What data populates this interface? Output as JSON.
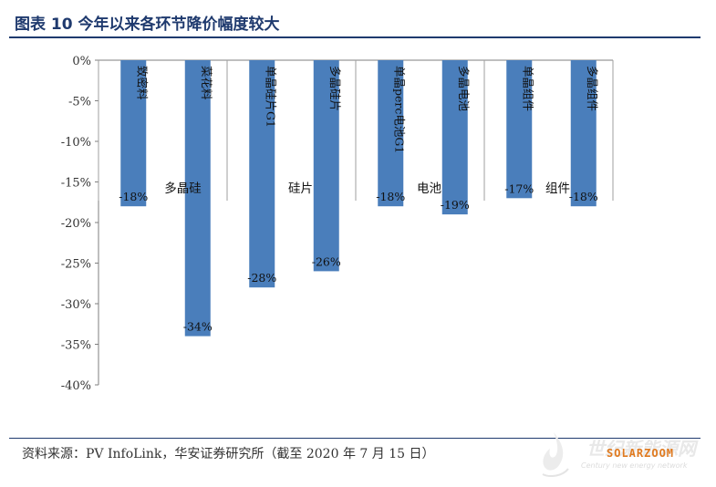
{
  "title": "图表 10 今年以来各环节降价幅度较大",
  "source": "资料来源：PV InfoLink，华安证券研究所（截至 2020 年 7 月 15 日）",
  "watermark": {
    "name": "世纪新能源网",
    "brand": "SOLARZOOM",
    "subtitle": "Century new energy network"
  },
  "colors": {
    "bar": "#4a7ebb",
    "title": "#1f3a6e",
    "brand": "#e07a1f"
  },
  "chart_data": {
    "type": "bar",
    "categories": [
      "致密料",
      "菜花料",
      "单晶硅片G1",
      "多晶硅片",
      "单晶perc电池G1",
      "多晶电池",
      "单晶组件",
      "多晶组件"
    ],
    "values": [
      -18,
      -34,
      -28,
      -26,
      -18,
      -19,
      -17,
      -18
    ],
    "data_labels": [
      "-18%",
      "-34%",
      "-28%",
      "-26%",
      "-18%",
      "-19%",
      "-17%",
      "-18%"
    ],
    "groups": [
      {
        "label": "多晶硅",
        "categories": [
          "致密料",
          "菜花料"
        ]
      },
      {
        "label": "硅片",
        "categories": [
          "单晶硅片G1",
          "多晶硅片"
        ]
      },
      {
        "label": "电池",
        "categories": [
          "单晶perc电池G1",
          "多晶电池"
        ]
      },
      {
        "label": "组件",
        "categories": [
          "单晶组件",
          "多晶组件"
        ]
      }
    ],
    "yticks": [
      "0%",
      "-5%",
      "-10%",
      "-15%",
      "-20%",
      "-25%",
      "-30%",
      "-35%",
      "-40%"
    ],
    "ylim": [
      -40,
      0
    ],
    "grid": false,
    "legend": "none"
  }
}
